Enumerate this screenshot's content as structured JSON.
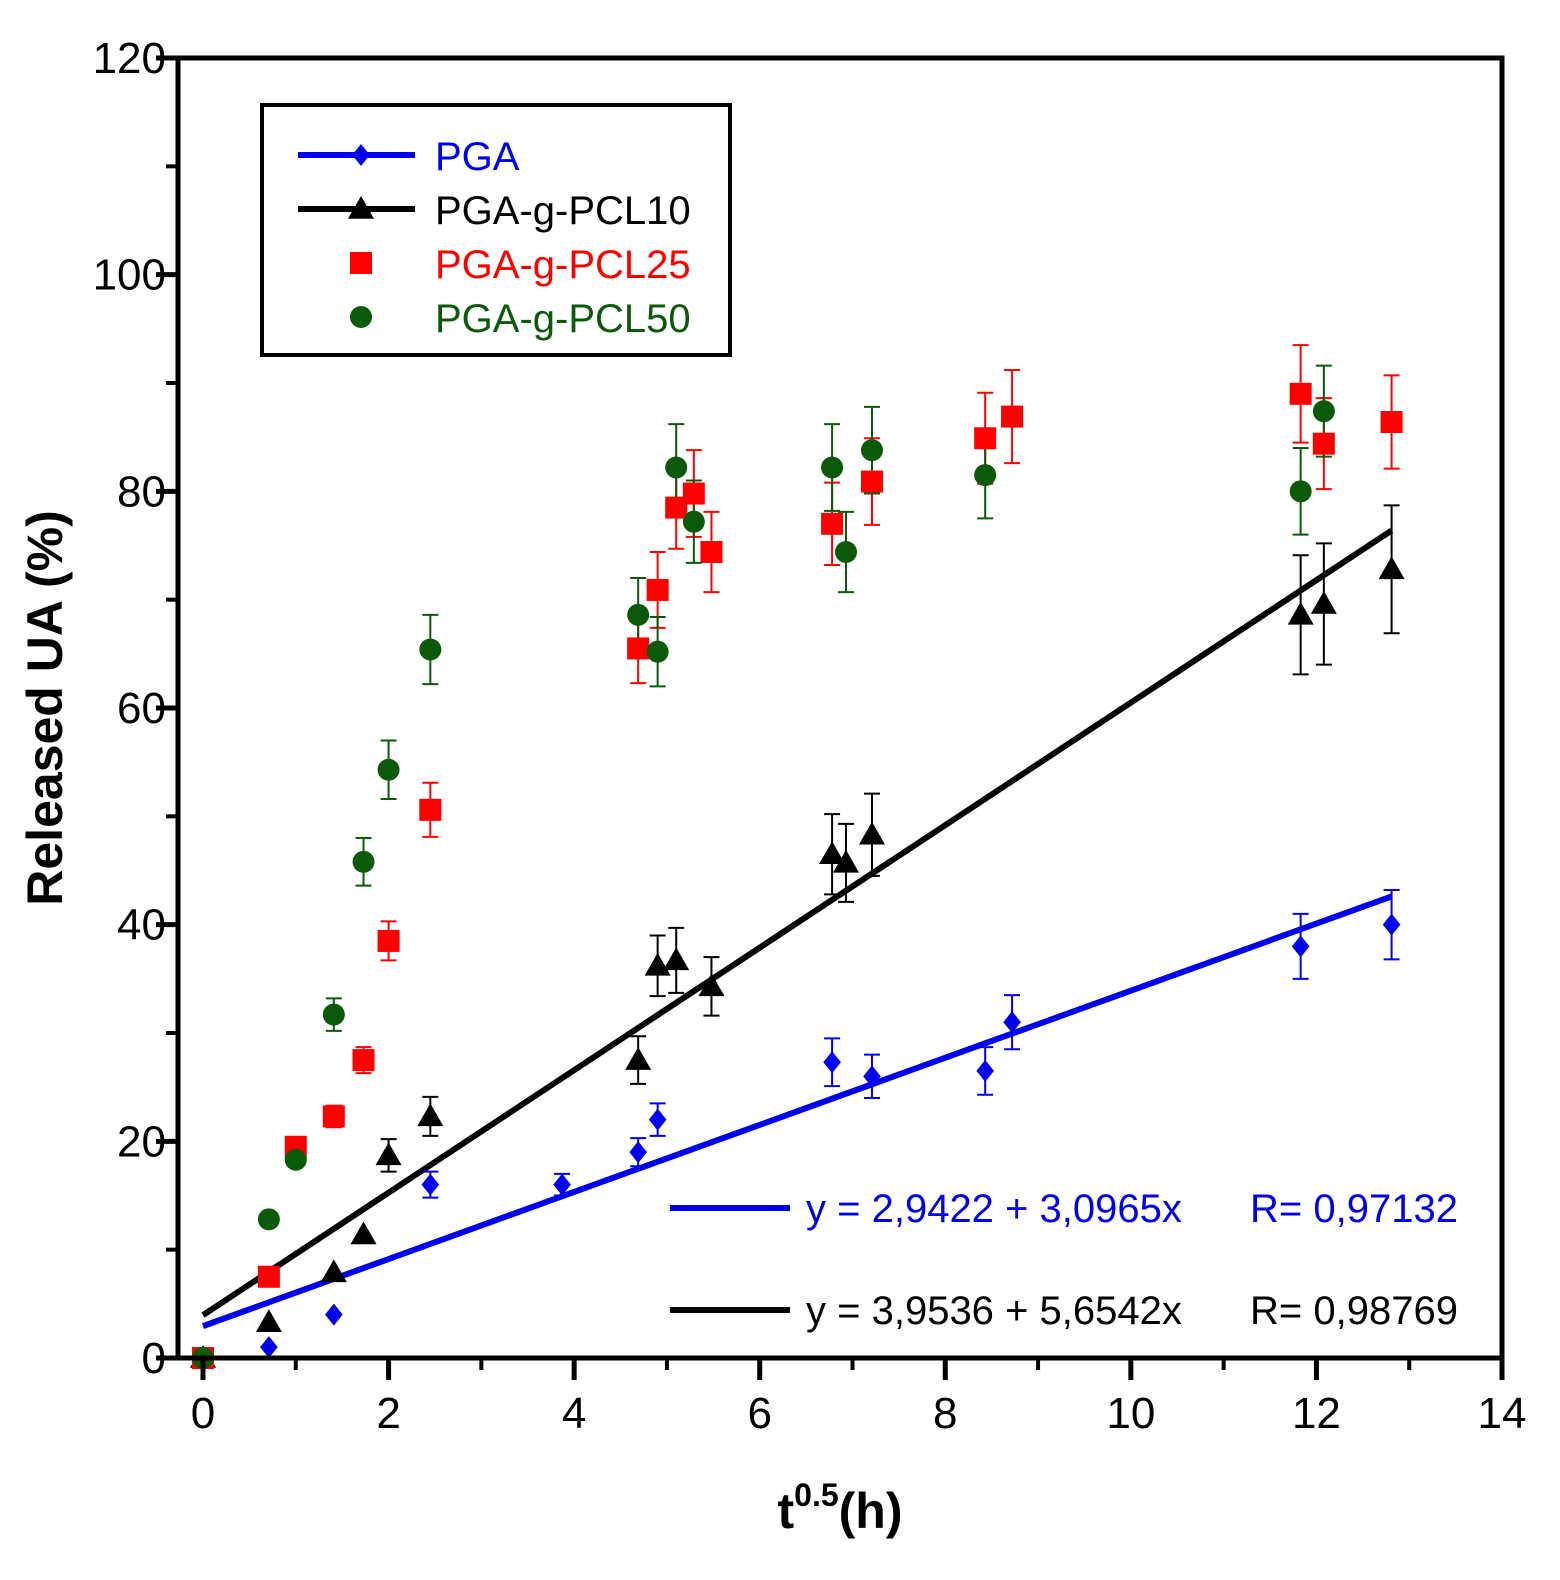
{
  "chart_data": {
    "type": "scatter",
    "title": "",
    "xlabel_base": "t",
    "xlabel_sup": "0.5",
    "xlabel_unit": "(h)",
    "ylabel": "Released UA (%)",
    "xlim": [
      0,
      14
    ],
    "ylim": [
      0,
      120
    ],
    "xticks": [
      0,
      2,
      4,
      6,
      8,
      10,
      12,
      14
    ],
    "yticks": [
      0,
      20,
      40,
      60,
      80,
      100,
      120
    ],
    "xtick_labels": [
      "0",
      "2",
      "4",
      "6",
      "8",
      "10",
      "12",
      "14"
    ],
    "ytick_labels": [
      "0",
      "20",
      "40",
      "60",
      "80",
      "100",
      "120"
    ],
    "grid": false,
    "legend_position": "top-left",
    "series": [
      {
        "name": "PGA",
        "color": "#0000ee",
        "marker": "diamond",
        "x": [
          0,
          0.71,
          1.41,
          2.45,
          3.87,
          4.69,
          4.9,
          6.78,
          7.21,
          8.43,
          8.72,
          11.83,
          12.81
        ],
        "y": [
          0,
          1.0,
          4.0,
          16.0,
          16.0,
          19.0,
          22.0,
          27.3,
          26.0,
          26.5,
          31.0,
          38.0,
          40.0
        ],
        "err": [
          0,
          0,
          0,
          1.2,
          1.0,
          1.3,
          1.5,
          2.2,
          2.0,
          2.2,
          2.5,
          3.0,
          3.2
        ]
      },
      {
        "name": "PGA-g-PCL10",
        "color": "#000000",
        "marker": "triangle",
        "x": [
          0,
          0.71,
          1.41,
          1.73,
          2.0,
          2.45,
          4.69,
          4.9,
          5.1,
          5.48,
          6.78,
          6.93,
          7.21,
          11.83,
          12.08,
          12.81
        ],
        "y": [
          0,
          3.3,
          7.9,
          11.4,
          18.7,
          22.3,
          27.5,
          36.2,
          36.7,
          34.3,
          46.5,
          45.7,
          48.3,
          68.6,
          69.6,
          72.8
        ],
        "err": [
          0,
          0,
          0,
          0,
          1.5,
          1.8,
          2.2,
          2.8,
          3.0,
          2.7,
          3.7,
          3.6,
          3.8,
          5.5,
          5.6,
          5.9
        ]
      },
      {
        "name": "PGA-g-PCL25",
        "color": "#ff0000",
        "marker": "square",
        "x": [
          0,
          0.71,
          1.0,
          1.41,
          1.73,
          2.0,
          2.45,
          4.69,
          4.9,
          5.1,
          5.29,
          5.48,
          6.78,
          7.21,
          8.43,
          8.72,
          11.83,
          12.08,
          12.81
        ],
        "y": [
          0,
          7.5,
          19.5,
          22.3,
          27.5,
          38.5,
          50.6,
          65.5,
          70.9,
          78.5,
          79.8,
          74.4,
          77.0,
          80.9,
          84.9,
          86.9,
          89.0,
          84.4,
          86.4
        ],
        "err": [
          0,
          0,
          0,
          1.0,
          1.2,
          1.8,
          2.5,
          3.2,
          3.5,
          3.8,
          4.0,
          3.7,
          3.8,
          4.0,
          4.2,
          4.3,
          4.5,
          4.2,
          4.3
        ]
      },
      {
        "name": "PGA-g-PCL50",
        "color": "#0a5a0a",
        "marker": "circle",
        "x": [
          0,
          0.71,
          1.0,
          1.41,
          1.73,
          2.0,
          2.45,
          4.69,
          4.9,
          5.1,
          5.29,
          6.78,
          6.93,
          7.21,
          8.43,
          11.83,
          12.08
        ],
        "y": [
          0,
          12.8,
          18.3,
          31.7,
          45.8,
          54.3,
          65.4,
          68.6,
          65.2,
          82.2,
          77.2,
          82.2,
          74.4,
          83.8,
          81.5,
          80.0,
          87.4
        ],
        "err": [
          0,
          0,
          0,
          1.5,
          2.2,
          2.7,
          3.2,
          3.4,
          3.2,
          4.0,
          3.8,
          4.0,
          3.7,
          4.0,
          4.0,
          4.0,
          4.2
        ]
      }
    ],
    "fits": [
      {
        "series": "PGA",
        "color": "#0000ee",
        "intercept": 2.9422,
        "slope": 3.0965,
        "x_range": [
          0,
          12.81
        ],
        "equation_label": "y = 2,9422 + 3,0965x",
        "r_label": "R= 0,97132"
      },
      {
        "series": "PGA-g-PCL10",
        "color": "#000000",
        "intercept": 3.9536,
        "slope": 5.6542,
        "x_range": [
          0,
          12.81
        ],
        "equation_label": "y = 3,9536 + 5,6542x",
        "r_label": "R= 0,98769"
      }
    ]
  }
}
